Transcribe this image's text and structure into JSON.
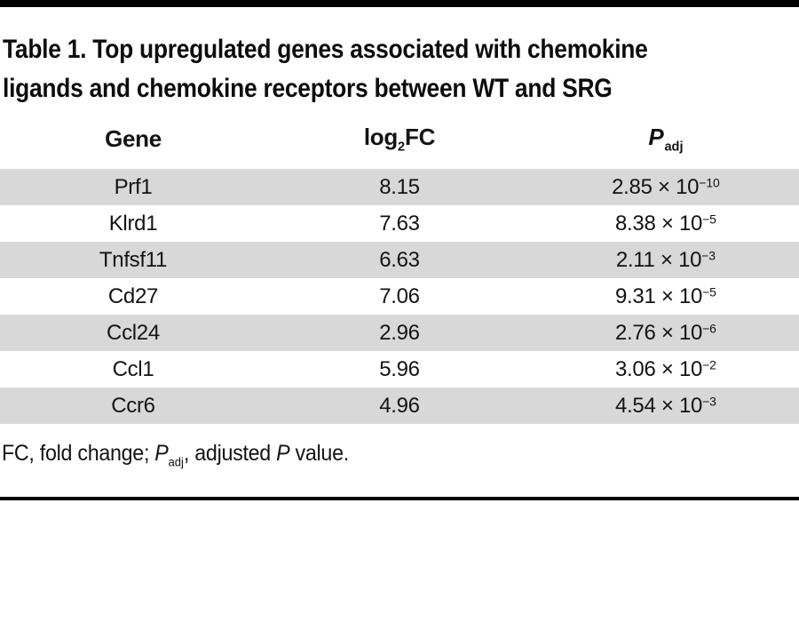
{
  "title": {
    "line1": "Table 1. Top upregulated genes associated with chemokine",
    "line2": "ligands and chemokine receptors between WT and SRG"
  },
  "table": {
    "header": {
      "gene": "Gene",
      "log_prefix": "log",
      "log_sub": "2",
      "log_suffix": "FC",
      "p": "P",
      "p_sub": "adj"
    },
    "times_ten": "× 10",
    "rows": [
      {
        "gene": "Prf1",
        "log2fc": "8.15",
        "p_mantissa": "2.85",
        "p_exponent": "−10"
      },
      {
        "gene": "Klrd1",
        "log2fc": "7.63",
        "p_mantissa": "8.38",
        "p_exponent": "−5"
      },
      {
        "gene": "Tnfsf11",
        "log2fc": "6.63",
        "p_mantissa": "2.11",
        "p_exponent": "−3"
      },
      {
        "gene": "Cd27",
        "log2fc": "7.06",
        "p_mantissa": "9.31",
        "p_exponent": "−5"
      },
      {
        "gene": "Ccl24",
        "log2fc": "2.96",
        "p_mantissa": "2.76",
        "p_exponent": "−6"
      },
      {
        "gene": "Ccl1",
        "log2fc": "5.96",
        "p_mantissa": "3.06",
        "p_exponent": "−2"
      },
      {
        "gene": "Ccr6",
        "log2fc": "4.96",
        "p_mantissa": "4.54",
        "p_exponent": "−3"
      }
    ]
  },
  "footnote": {
    "part1": "FC, fold change; ",
    "p1": "P",
    "p1_sub": "adj",
    "part2": ", adjusted ",
    "p2": "P",
    "part3": " value."
  },
  "colors": {
    "row_stripe": "#d8d8d8",
    "rule": "#000000",
    "text": "#131313"
  }
}
